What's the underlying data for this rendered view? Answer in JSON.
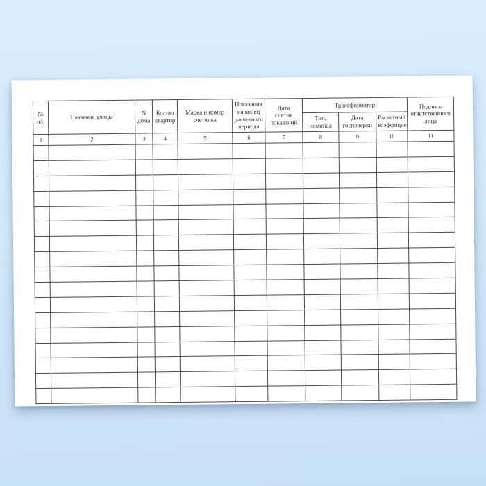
{
  "colors": {
    "background_top": "#daeefd",
    "background_bottom": "#c7dff5",
    "paper": "#ffffff",
    "grid_lines": "#4a4a4a"
  },
  "table": {
    "group_header": "Трансформатор",
    "empty_row_count": 17,
    "columns": [
      {
        "number": "1",
        "label": "№\nп/п"
      },
      {
        "number": "2",
        "label": "Название улицы"
      },
      {
        "number": "3",
        "label": "N\nдома"
      },
      {
        "number": "4",
        "label": "Кол-во\nквартир"
      },
      {
        "number": "5",
        "label": "Марка и номер\nсчетчика"
      },
      {
        "number": "6",
        "label": "Показания\nна конец\nрасчетного\nпериода"
      },
      {
        "number": "7",
        "label": "Дата\nснятия\nпоказаний"
      },
      {
        "number": "8",
        "label": "Тип,\nноминал"
      },
      {
        "number": "9",
        "label": "Дата\nгосповерки"
      },
      {
        "number": "10",
        "label": "Расчетный\nкоэффициент"
      },
      {
        "number": "11",
        "label": "Подпись\nответственного\nлица"
      }
    ]
  }
}
